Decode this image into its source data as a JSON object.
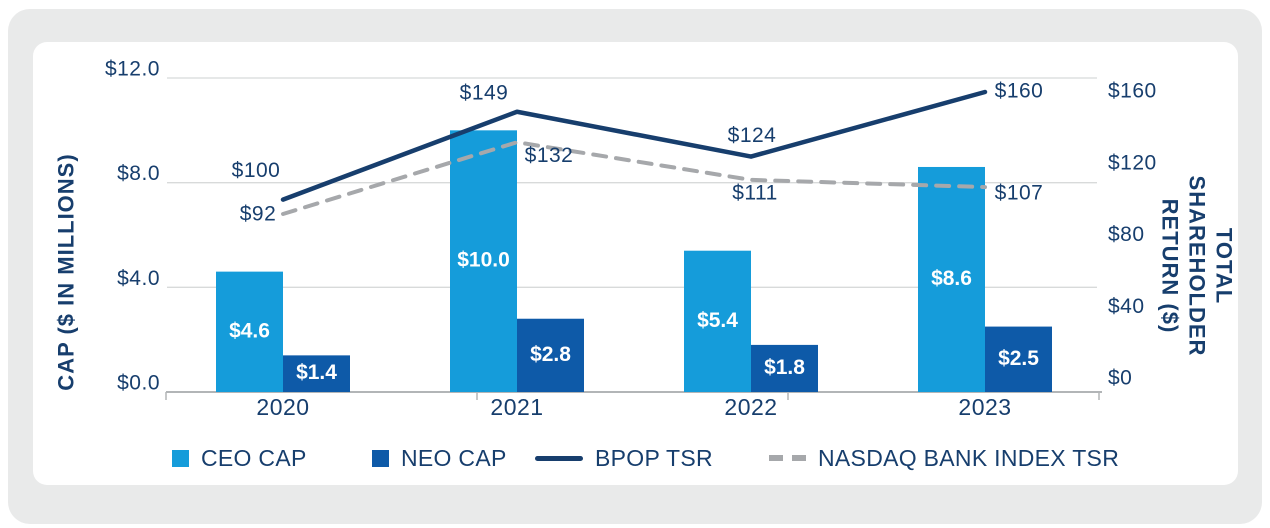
{
  "colors": {
    "frame_bg": "#e9eaea",
    "card_bg": "#ffffff",
    "ceo_bar": "#159cda",
    "neo_bar": "#0e5aa8",
    "bpop_line": "#173e6d",
    "nasdaq_line": "#a6a8ab",
    "gridline": "#d8dada",
    "axis_line": "#b2b5b7",
    "navy_text": "#173e6d",
    "bar_label_text": "#ffffff"
  },
  "left_axis": {
    "title": "CAP ($ IN MILLIONS)",
    "ticks": [
      {
        "label": "$12.0",
        "value": 12
      },
      {
        "label": "$8.0",
        "value": 8
      },
      {
        "label": "$4.0",
        "value": 4
      },
      {
        "label": "$0.0",
        "value": 0
      }
    ],
    "range": [
      0,
      12
    ]
  },
  "right_axis": {
    "title": "TOTAL SHAREHOLDER\nRETURN ($)",
    "ticks": [
      {
        "label": "$160",
        "value": 160
      },
      {
        "label": "$120",
        "value": 120
      },
      {
        "label": "$80",
        "value": 80
      },
      {
        "label": "$40",
        "value": 40
      },
      {
        "label": "$0",
        "value": 0
      }
    ],
    "range": [
      0,
      160
    ]
  },
  "chart_data": {
    "type": "combo-bar-line",
    "categories": [
      "2020",
      "2021",
      "2022",
      "2023"
    ],
    "series": [
      {
        "name": "CEO CAP",
        "type": "bar",
        "axis": "left",
        "values": [
          4.6,
          10.0,
          5.4,
          8.6
        ],
        "labels": [
          "$4.6",
          "$10.0",
          "$5.4",
          "$8.6"
        ],
        "color": "#159cda"
      },
      {
        "name": "NEO CAP",
        "type": "bar",
        "axis": "left",
        "values": [
          1.4,
          2.8,
          1.8,
          2.5
        ],
        "labels": [
          "$1.4",
          "$2.8",
          "$1.8",
          "$2.5"
        ],
        "color": "#0e5aa8"
      },
      {
        "name": "BPOP TSR",
        "type": "line",
        "style": "solid",
        "axis": "right",
        "values": [
          100,
          149,
          124,
          160
        ],
        "labels": [
          "$100",
          "$149",
          "$124",
          "$160"
        ],
        "color": "#173e6d"
      },
      {
        "name": "NASDAQ BANK INDEX TSR",
        "type": "line",
        "style": "dashed",
        "axis": "right",
        "values": [
          92,
          132,
          111,
          107
        ],
        "labels": [
          "$92",
          "$132",
          "$111",
          "$107"
        ],
        "color": "#a6a8ab"
      }
    ],
    "grid": "horizontal",
    "legend_position": "bottom"
  },
  "legend": {
    "items": [
      {
        "label": "CEO CAP",
        "swatch": "square",
        "color": "#159cda"
      },
      {
        "label": "NEO CAP",
        "swatch": "square",
        "color": "#0e5aa8"
      },
      {
        "label": "BPOP TSR",
        "swatch": "line",
        "color": "#173e6d"
      },
      {
        "label": "NASDAQ BANK INDEX TSR",
        "swatch": "dashes",
        "color": "#a6a8ab"
      }
    ]
  }
}
